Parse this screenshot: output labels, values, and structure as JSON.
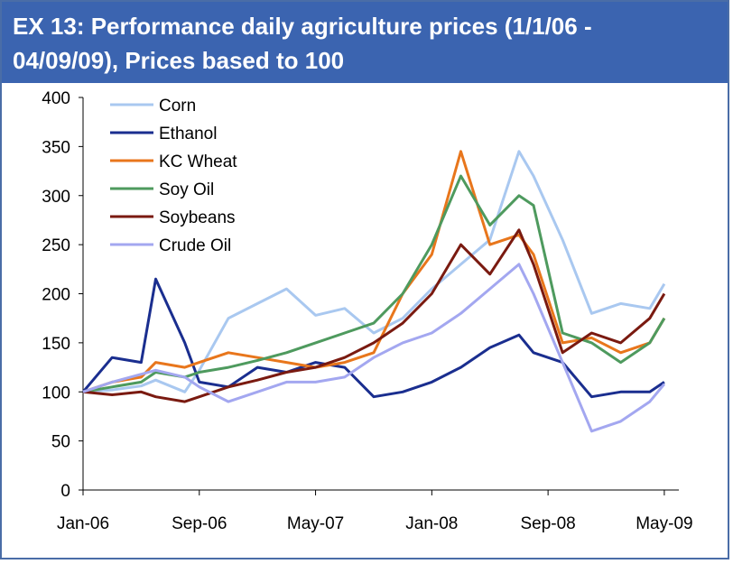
{
  "header": {
    "title_line1": "EX 13: Performance daily agriculture prices (1/1/06 -",
    "title_line2": "04/09/09), Prices based to 100"
  },
  "chart_data": {
    "type": "line",
    "title": "EX 13: Performance daily agriculture prices (1/1/06 - 04/09/09), Prices based to 100",
    "xlabel": "",
    "ylabel": "",
    "ylim": [
      0,
      400
    ],
    "yticks": [
      0,
      50,
      100,
      150,
      200,
      250,
      300,
      350,
      400
    ],
    "xlim": [
      "2006-01",
      "2009-06"
    ],
    "xticks": [
      "Jan-06",
      "Sep-06",
      "May-07",
      "Jan-08",
      "Sep-08",
      "May-09"
    ],
    "grid": false,
    "legend": "top-left",
    "x": [
      "2006-01",
      "2006-03",
      "2006-05",
      "2006-06",
      "2006-08",
      "2006-09",
      "2006-11",
      "2007-01",
      "2007-03",
      "2007-05",
      "2007-07",
      "2007-09",
      "2007-11",
      "2008-01",
      "2008-03",
      "2008-05",
      "2008-07",
      "2008-08",
      "2008-10",
      "2008-12",
      "2009-02",
      "2009-04",
      "2009-05"
    ],
    "series": [
      {
        "name": "Corn",
        "color": "#a9c8f0",
        "values": [
          100,
          102,
          106,
          112,
          100,
          122,
          175,
          190,
          205,
          178,
          185,
          160,
          175,
          205,
          230,
          255,
          345,
          320,
          255,
          180,
          190,
          185,
          210
        ]
      },
      {
        "name": "Ethanol",
        "color": "#1a2e8f",
        "values": [
          100,
          135,
          130,
          215,
          150,
          110,
          105,
          125,
          120,
          130,
          125,
          95,
          100,
          110,
          125,
          145,
          158,
          140,
          130,
          95,
          100,
          100,
          110
        ]
      },
      {
        "name": "KC Wheat",
        "color": "#e8761c",
        "values": [
          100,
          110,
          115,
          130,
          125,
          130,
          140,
          135,
          130,
          125,
          130,
          140,
          200,
          240,
          345,
          250,
          260,
          240,
          150,
          155,
          140,
          150,
          175
        ]
      },
      {
        "name": "Soy Oil",
        "color": "#4e9a5e",
        "values": [
          100,
          105,
          110,
          120,
          115,
          120,
          125,
          132,
          140,
          150,
          160,
          170,
          200,
          250,
          320,
          270,
          300,
          290,
          160,
          150,
          130,
          150,
          175
        ]
      },
      {
        "name": "Soybeans",
        "color": "#7a1a10",
        "values": [
          100,
          97,
          100,
          95,
          90,
          95,
          105,
          112,
          120,
          125,
          135,
          150,
          170,
          200,
          250,
          220,
          265,
          230,
          140,
          160,
          150,
          175,
          200
        ]
      },
      {
        "name": "Crude Oil",
        "color": "#a3a7f0",
        "values": [
          100,
          110,
          118,
          122,
          115,
          105,
          90,
          100,
          110,
          110,
          115,
          135,
          150,
          160,
          180,
          205,
          230,
          200,
          130,
          60,
          70,
          90,
          108
        ]
      }
    ]
  }
}
